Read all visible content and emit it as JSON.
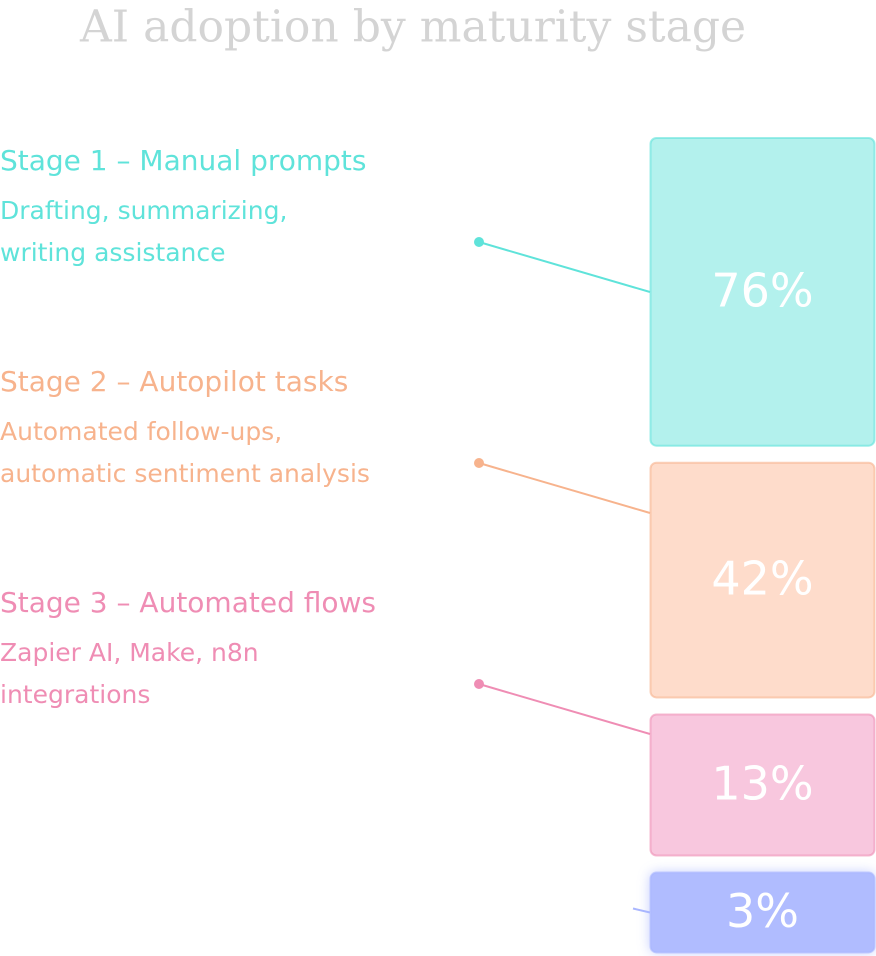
{
  "chart_data": {
    "type": "bar",
    "title": "AI adoption by maturity stage",
    "categories": [
      "Stage 1 – Manual prompts",
      "Stage 2 – Autopilot tasks",
      "Stage 3 – Automated flows",
      null
    ],
    "descriptions": [
      [
        "Drafting, summarizing,",
        "writing assistance"
      ],
      [
        "Automated follow-ups,",
        "automatic sentiment analysis"
      ],
      [
        "Zapier AI, Make, n8n",
        "integrations"
      ],
      null
    ],
    "values": [
      76,
      42,
      13,
      3
    ],
    "value_labels": [
      "76%",
      "42%",
      "13%",
      "3%"
    ],
    "colors": [
      "#5fe3da",
      "#f7b38d",
      "#ef8db4",
      "#a9b6ff"
    ],
    "fills": [
      "#b3f1ed",
      "#fedccb",
      "#f8c7de",
      "#b0bcff"
    ]
  }
}
